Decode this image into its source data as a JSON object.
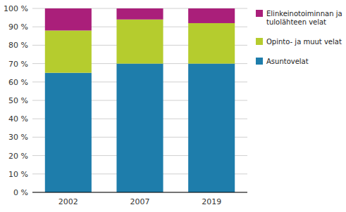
{
  "chart_data": {
    "type": "bar",
    "stacked": true,
    "grid": true,
    "legend": "right",
    "categories": [
      "2002",
      "2007",
      "2019"
    ],
    "series": [
      {
        "name": "Asuntovelat",
        "color": "#1e7dab",
        "values": [
          65,
          70,
          70
        ]
      },
      {
        "name": "Opinto- ja muut velat",
        "color": "#b5cc2e",
        "values": [
          23,
          24,
          22
        ]
      },
      {
        "name": "Elinkeinotoiminnan ja\ntulolähteen velat",
        "color": "#aa1f7a",
        "values": [
          12,
          6,
          8
        ]
      }
    ],
    "ylim": [
      0,
      100
    ],
    "yticks": [
      {
        "value": 0,
        "label": "0 %"
      },
      {
        "value": 10,
        "label": "10 %"
      },
      {
        "value": 20,
        "label": "20 %"
      },
      {
        "value": 30,
        "label": "30 %"
      },
      {
        "value": 40,
        "label": "40 %"
      },
      {
        "value": 50,
        "label": "50 %"
      },
      {
        "value": 60,
        "label": "60 %"
      },
      {
        "value": 70,
        "label": "70 %"
      },
      {
        "value": 80,
        "label": "80 %"
      },
      {
        "value": 90,
        "label": "90 %"
      },
      {
        "value": 100,
        "label": "100 %"
      }
    ]
  }
}
